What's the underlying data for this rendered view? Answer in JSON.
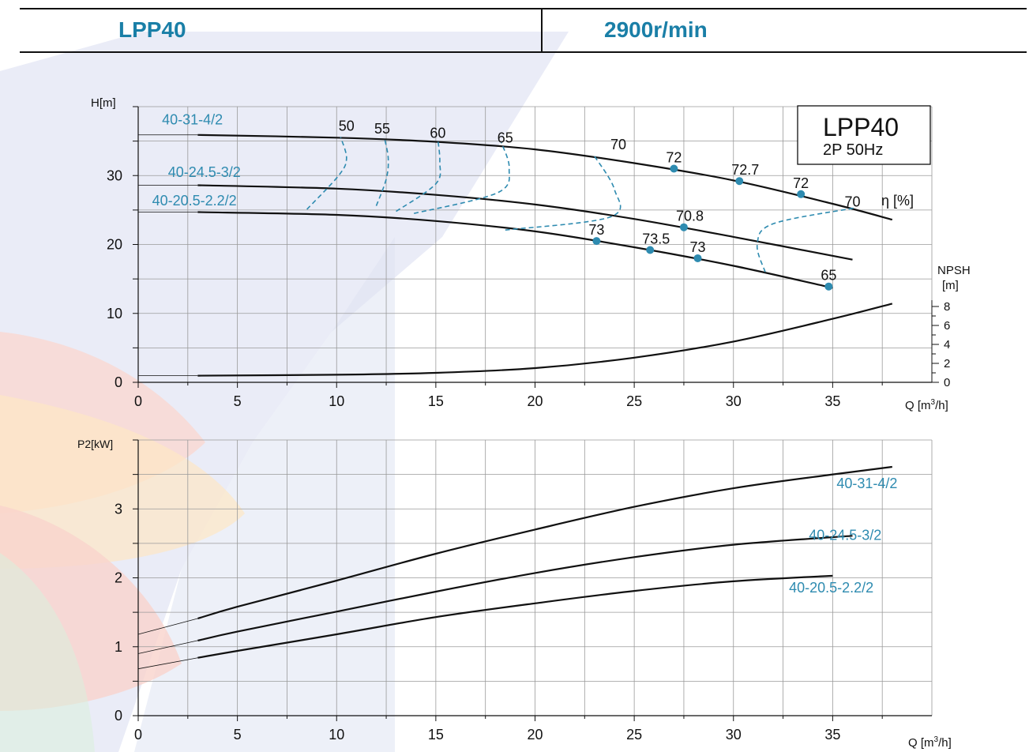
{
  "header": {
    "model": "LPP40",
    "speed": "2900r/min"
  },
  "colors": {
    "curve": "#111111",
    "accent": "#2e8bb0",
    "grid": "#9a9a9a"
  },
  "chart_data": [
    {
      "type": "line",
      "title": "LPP40",
      "subtitle": "2P  50Hz",
      "xlabel": "Q [m³/h]",
      "ylabel": "H[m]",
      "y2label": "NPSH [m]",
      "eta_label": "η [%]",
      "xlim": [
        0,
        40
      ],
      "ylim": [
        0,
        40
      ],
      "xticks": [
        0,
        5,
        10,
        15,
        20,
        25,
        30,
        35
      ],
      "yticks": [
        0,
        10,
        20,
        30
      ],
      "y2ticks": [
        0,
        2,
        4,
        6,
        8
      ],
      "grid": true,
      "series": [
        {
          "name": "40-31-4/2",
          "role": "head",
          "x": [
            3,
            10,
            15,
            20,
            25,
            30,
            35,
            38
          ],
          "y": [
            35.9,
            35.5,
            34.9,
            33.8,
            31.8,
            29.3,
            25.9,
            23.6
          ]
        },
        {
          "name": "40-24.5-3/2",
          "role": "head",
          "x": [
            3,
            10,
            15,
            20,
            25,
            30,
            36
          ],
          "y": [
            28.6,
            28.1,
            27.2,
            25.8,
            23.7,
            21.1,
            17.8
          ]
        },
        {
          "name": "40-20.5-2.2/2",
          "role": "head",
          "x": [
            3,
            10,
            15,
            20,
            25,
            30,
            35
          ],
          "y": [
            24.7,
            24.3,
            23.4,
            21.9,
            19.6,
            16.9,
            13.7
          ]
        },
        {
          "name": "",
          "role": "npsh",
          "x": [
            0,
            3,
            10,
            15,
            20,
            25,
            30,
            35,
            38
          ],
          "y": [
            0.7,
            0.7,
            0.8,
            1.0,
            1.5,
            2.6,
            4.3,
            6.7,
            8.3
          ]
        }
      ],
      "efficiency_points": [
        {
          "x": 27,
          "y": 31.0,
          "label": "72"
        },
        {
          "x": 30.3,
          "y": 29.2,
          "label": "72.7"
        },
        {
          "x": 33.4,
          "y": 27.3,
          "label": "72"
        },
        {
          "x": 27.5,
          "y": 22.5,
          "label": "70.8"
        },
        {
          "x": 23.1,
          "y": 20.5,
          "label": "73"
        },
        {
          "x": 25.8,
          "y": 19.2,
          "label": "73.5"
        },
        {
          "x": 28.2,
          "y": 18.0,
          "label": "73"
        },
        {
          "x": 34.8,
          "y": 13.9,
          "label": "65"
        }
      ],
      "efficiency_contours": [
        {
          "label": "50",
          "x": [
            8.5,
            10.1,
            10.5,
            10.2
          ],
          "y": [
            25.1,
            30.0,
            32.5,
            35.6
          ]
        },
        {
          "label": "55",
          "x": [
            12.0,
            12.5,
            12.6,
            12.4
          ],
          "y": [
            25.6,
            29.5,
            32.5,
            35.6
          ]
        },
        {
          "label": "60",
          "x": [
            13.0,
            15.0,
            15.2,
            15.1
          ],
          "y": [
            24.8,
            28.8,
            32.0,
            35.3
          ]
        },
        {
          "label": "65",
          "x": [
            13.9,
            18.1,
            18.7,
            18.3
          ],
          "y": [
            24.5,
            27.5,
            31.0,
            34.8
          ]
        },
        {
          "label": "70",
          "x": [
            18.5,
            23.8,
            24.0,
            23.0
          ],
          "y": [
            22.1,
            24.0,
            28.0,
            32.8
          ]
        },
        {
          "label": "70",
          "x": [
            31.6,
            31.2,
            32.0,
            36.1
          ],
          "y": [
            16.0,
            20.0,
            23.0,
            25.3
          ]
        }
      ],
      "contour_labels": [
        {
          "x": 10.1,
          "y": 36.5,
          "label": "50"
        },
        {
          "x": 11.9,
          "y": 36.1,
          "label": "55"
        },
        {
          "x": 14.7,
          "y": 35.5,
          "label": "60"
        },
        {
          "x": 18.1,
          "y": 34.8,
          "label": "65"
        },
        {
          "x": 23.8,
          "y": 33.8,
          "label": "70"
        },
        {
          "x": 35.6,
          "y": 25.5,
          "label": "70"
        }
      ],
      "curve_labels": [
        {
          "text": "40-31-4/2",
          "x": 1.2,
          "y": 37.4
        },
        {
          "text": "40-24.5-3/2",
          "x": 1.5,
          "y": 29.8
        },
        {
          "text": "40-20.5-2.2/2",
          "x": 0.7,
          "y": 25.7
        }
      ]
    },
    {
      "type": "line",
      "xlabel": "Q [m³/h]",
      "ylabel": "P2[kW]",
      "xlim": [
        0,
        40
      ],
      "ylim": [
        0,
        4
      ],
      "xticks": [
        0,
        5,
        10,
        15,
        20,
        25,
        30,
        35
      ],
      "yticks": [
        0,
        1,
        2,
        3
      ],
      "grid": true,
      "series": [
        {
          "name": "40-31-4/2",
          "x": [
            3,
            5,
            10,
            15,
            20,
            25,
            30,
            35,
            38
          ],
          "y": [
            1.41,
            1.58,
            1.96,
            2.35,
            2.7,
            3.03,
            3.3,
            3.5,
            3.61
          ]
        },
        {
          "name": "40-24.5-3/2",
          "x": [
            3,
            5,
            10,
            15,
            20,
            25,
            30,
            36
          ],
          "y": [
            1.09,
            1.22,
            1.51,
            1.8,
            2.07,
            2.3,
            2.48,
            2.61
          ]
        },
        {
          "name": "40-20.5-2.2/2",
          "x": [
            3,
            5,
            10,
            15,
            20,
            25,
            30,
            35
          ],
          "y": [
            0.84,
            0.94,
            1.18,
            1.43,
            1.63,
            1.81,
            1.95,
            2.03
          ]
        }
      ],
      "extrapolation_start": [
        1.18,
        0.9,
        0.68
      ],
      "curve_labels": [
        {
          "text": "40-31-4/2",
          "x": 35.2,
          "y": 3.3
        },
        {
          "text": "40-24.5-3/2",
          "x": 33.8,
          "y": 2.55
        },
        {
          "text": "40-20.5-2.2/2",
          "x": 32.8,
          "y": 1.79
        }
      ]
    }
  ]
}
